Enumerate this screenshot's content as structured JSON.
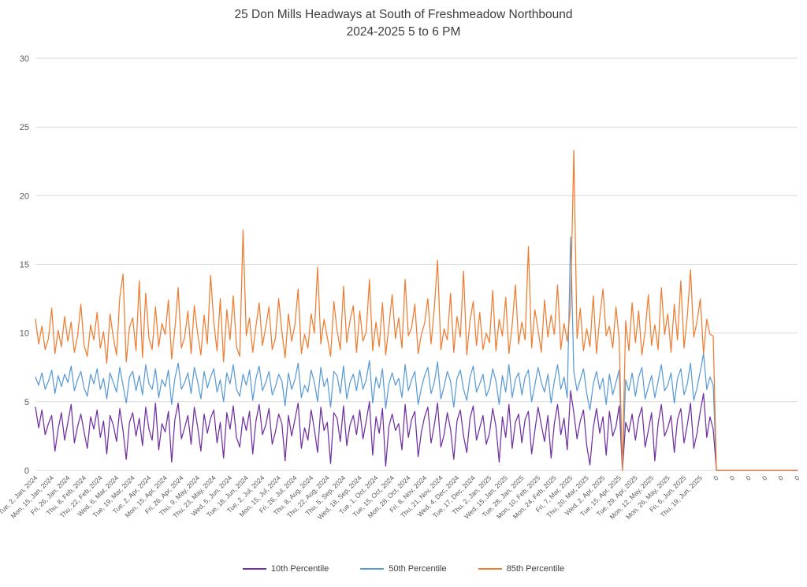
{
  "chart_data": {
    "type": "line",
    "title": "25 Don Mills Headways at South of Freshmeadow Northbound",
    "subtitle": "2024-2025 5 to 6 PM",
    "ylim": [
      0,
      30
    ],
    "y_ticks": [
      0,
      5,
      10,
      15,
      20,
      25,
      30
    ],
    "grid": true,
    "legend_position": "bottom",
    "points_per_tick": 5,
    "x_tick_labels": [
      "Tue, 2, Jan, 2024",
      "Mon, 15, Jan, 2024",
      "Fri, 26, Jan, 2024",
      "Thu, 8, Feb, 2024",
      "Thu, 22, Feb, 2024",
      "Wed, 6, Mar, 2024",
      "Tue, 19, Mar, 2024",
      "Tue, 2, Apr, 2024",
      "Mon, 15, Apr, 2024",
      "Fri, 26, Apr, 2024",
      "Thu, 9, May, 2024",
      "Thu, 23, May, 2024",
      "Wed, 5, Jun, 2024",
      "Tue, 18, Jun, 2024",
      "Tue, 2, Jul, 2024",
      "Mon, 15, Jul, 2024",
      "Fri, 26, Jul, 2024",
      "Thu, 8, Aug, 2024",
      "Thu, 22, Aug, 2024",
      "Thu, 5, Sep, 2024",
      "Wed, 18, Sep, 2024",
      "Tue, 1, Oct, 2024",
      "Tue, 15, Oct, 2024",
      "Mon, 28, Oct, 2024",
      "Fri, 8, Nov, 2024",
      "Thu, 21, Nov, 2024",
      "Wed, 4, Dec, 2024",
      "Tue, 17, Dec, 2024",
      "Thu, 2, Jan, 2025",
      "Wed, 15, Jan, 2025",
      "Tue, 28, Jan, 2025",
      "Mon, 10, Feb, 2025",
      "Mon, 24, Feb, 2025",
      "Fri, 7, Mar, 2025",
      "Thu, 20, Mar, 2025",
      "Wed, 2, Apr, 2025",
      "Tue, 15, Apr, 2025",
      "Tue, 29, Apr, 2025",
      "Mon, 12, May, 2025",
      "Mon, 26, May, 2025",
      "Fri, 6, Jun, 2025",
      "Thu, 19, Jun, 2025",
      "0",
      "0",
      "0",
      "0",
      "0",
      "0"
    ],
    "series": [
      {
        "name": "10th Percentile",
        "color": "#7030A0",
        "values": [
          4.6,
          3.1,
          4.4,
          2.6,
          3.4,
          4.0,
          1.4,
          3.0,
          4.2,
          2.2,
          3.5,
          4.8,
          2.0,
          3.2,
          4.1,
          2.8,
          1.6,
          3.9,
          3.0,
          4.4,
          2.4,
          3.6,
          1.2,
          4.0,
          3.3,
          2.1,
          4.5,
          2.9,
          0.8,
          3.5,
          4.2,
          2.5,
          3.8,
          1.8,
          4.6,
          3.0,
          2.2,
          4.9,
          1.5,
          3.4,
          2.8,
          4.3,
          0.6,
          3.7,
          4.9,
          2.3,
          3.1,
          4.0,
          1.9,
          4.6,
          3.2,
          1.4,
          4.1,
          2.7,
          3.8,
          4.4,
          2.0,
          3.5,
          0.9,
          4.2,
          3.0,
          4.7,
          2.4,
          1.7,
          3.9,
          2.9,
          4.3,
          1.2,
          3.6,
          4.8,
          2.6,
          3.3,
          4.5,
          1.9,
          2.8,
          4.1,
          3.4,
          0.7,
          4.0,
          2.5,
          3.7,
          4.9,
          1.6,
          3.1,
          2.2,
          4.4,
          3.0,
          1.3,
          4.6,
          2.9,
          3.5,
          0.5,
          4.2,
          3.8,
          2.1,
          4.7,
          1.8,
          3.3,
          4.0,
          2.6,
          4.4,
          2.3,
          3.6,
          5.0,
          1.1,
          3.9,
          2.7,
          4.5,
          0.3,
          3.2,
          4.1,
          2.9,
          3.4,
          1.5,
          4.8,
          2.4,
          3.7,
          4.3,
          1.0,
          2.8,
          3.9,
          4.6,
          2.0,
          3.3,
          4.9,
          1.7,
          2.6,
          4.2,
          3.0,
          0.8,
          3.6,
          4.4,
          2.5,
          1.3,
          3.8,
          4.7,
          2.2,
          3.1,
          4.0,
          1.9,
          2.7,
          4.5,
          3.2,
          0.6,
          3.9,
          2.4,
          4.8,
          1.6,
          3.5,
          4.1,
          2.0,
          3.7,
          4.3,
          1.2,
          2.9,
          4.6,
          3.3,
          2.1,
          4.0,
          0.9,
          3.4,
          4.8,
          2.6,
          3.8,
          1.5,
          5.8,
          4.2,
          2.3,
          3.6,
          4.4,
          1.8,
          0.4,
          3.1,
          4.5,
          2.7,
          3.9,
          1.1,
          4.3,
          2.5,
          3.2,
          4.7,
          0.0,
          3.5,
          2.8,
          4.1,
          2.2,
          3.8,
          4.6,
          1.7,
          2.9,
          4.2,
          0.7,
          3.4,
          4.8,
          2.5,
          3.1,
          4.0,
          1.3,
          3.7,
          4.5,
          2.0,
          3.3,
          4.9,
          1.6,
          2.7,
          4.3,
          5.6,
          2.4,
          3.9,
          3.0,
          0,
          0,
          0,
          0,
          0,
          0,
          0,
          0,
          0,
          0,
          0,
          0,
          0,
          0,
          0,
          0,
          0,
          0,
          0,
          0,
          0,
          0,
          0,
          0,
          0,
          0
        ]
      },
      {
        "name": "50th Percentile",
        "color": "#5B9BD5",
        "values": [
          6.8,
          6.2,
          7.1,
          5.9,
          6.5,
          7.3,
          5.6,
          6.9,
          6.1,
          7.0,
          6.4,
          7.6,
          5.8,
          6.6,
          7.2,
          6.0,
          5.4,
          7.0,
          6.3,
          7.4,
          5.9,
          6.7,
          5.2,
          7.1,
          6.4,
          5.7,
          7.5,
          6.2,
          4.9,
          6.8,
          7.2,
          5.8,
          6.9,
          5.5,
          7.7,
          6.3,
          5.9,
          7.4,
          5.3,
          6.6,
          6.1,
          7.3,
          4.8,
          6.7,
          7.8,
          5.9,
          6.4,
          7.1,
          5.6,
          7.5,
          6.5,
          5.2,
          7.2,
          6.0,
          6.8,
          7.4,
          5.7,
          6.6,
          5.0,
          7.1,
          6.3,
          7.7,
          5.9,
          5.4,
          7.0,
          6.2,
          7.3,
          5.1,
          6.7,
          7.6,
          5.8,
          6.4,
          7.2,
          5.5,
          6.1,
          7.0,
          6.5,
          4.7,
          7.1,
          5.9,
          6.6,
          7.8,
          5.3,
          6.2,
          5.7,
          7.3,
          6.4,
          5.0,
          7.5,
          6.1,
          6.7,
          4.6,
          7.2,
          6.9,
          5.6,
          7.6,
          5.2,
          6.4,
          7.0,
          5.8,
          7.3,
          5.9,
          6.6,
          8.0,
          4.9,
          6.8,
          6.0,
          7.4,
          4.5,
          6.3,
          7.1,
          6.2,
          6.7,
          5.3,
          7.7,
          5.8,
          6.6,
          7.2,
          4.8,
          6.0,
          6.9,
          7.5,
          5.6,
          6.4,
          7.9,
          5.2,
          6.1,
          7.2,
          6.5,
          4.6,
          6.7,
          7.3,
          5.9,
          5.1,
          6.8,
          7.6,
          5.7,
          6.3,
          7.0,
          5.4,
          6.0,
          7.4,
          6.5,
          4.8,
          6.9,
          5.7,
          7.7,
          5.3,
          6.6,
          7.1,
          5.5,
          6.8,
          7.3,
          5.0,
          6.2,
          7.5,
          6.4,
          5.7,
          7.0,
          4.9,
          6.5,
          7.7,
          5.9,
          6.8,
          5.3,
          17.0,
          7.2,
          5.8,
          6.6,
          7.4,
          5.6,
          4.4,
          6.3,
          7.2,
          5.9,
          6.7,
          4.8,
          7.0,
          5.5,
          6.4,
          7.3,
          0.0,
          6.6,
          5.8,
          7.1,
          5.4,
          6.8,
          7.5,
          5.2,
          6.1,
          6.9,
          5.3,
          6.5,
          7.7,
          5.8,
          6.2,
          7.1,
          4.9,
          6.7,
          7.4,
          5.5,
          6.3,
          7.8,
          5.1,
          6.0,
          7.2,
          8.5,
          5.9,
          6.8,
          6.2,
          0,
          0,
          0,
          0,
          0,
          0,
          0,
          0,
          0,
          0,
          0,
          0,
          0,
          0,
          0,
          0,
          0,
          0,
          0,
          0,
          0,
          0,
          0,
          0,
          0,
          0
        ]
      },
      {
        "name": "85th Percentile",
        "color": "#ED7D31",
        "values": [
          11.0,
          9.2,
          10.5,
          8.8,
          9.6,
          11.8,
          8.5,
          10.2,
          9.0,
          11.2,
          9.4,
          10.8,
          8.6,
          9.8,
          12.1,
          9.1,
          8.3,
          10.6,
          9.5,
          11.5,
          8.9,
          10.1,
          7.8,
          11.4,
          9.7,
          8.4,
          12.6,
          14.3,
          7.9,
          10.4,
          11.1,
          8.7,
          13.8,
          8.2,
          12.9,
          9.6,
          8.8,
          11.9,
          9.0,
          10.7,
          9.9,
          12.4,
          8.1,
          10.3,
          13.3,
          8.9,
          9.7,
          11.6,
          8.5,
          12.0,
          10.0,
          8.4,
          11.3,
          9.2,
          14.2,
          10.8,
          8.7,
          12.5,
          7.9,
          11.7,
          9.5,
          12.7,
          9.0,
          8.3,
          17.5,
          9.8,
          11.1,
          8.6,
          10.5,
          12.2,
          9.1,
          10.4,
          11.9,
          8.8,
          9.6,
          12.5,
          10.1,
          8.2,
          11.4,
          9.4,
          10.6,
          13.2,
          8.5,
          9.9,
          8.9,
          11.4,
          10.0,
          14.8,
          9.2,
          11.0,
          9.7,
          8.3,
          12.3,
          10.2,
          8.8,
          13.4,
          9.3,
          10.9,
          12.0,
          8.6,
          11.6,
          9.4,
          10.1,
          13.9,
          8.7,
          10.8,
          9.0,
          12.2,
          8.4,
          10.5,
          12.8,
          9.6,
          11.1,
          8.9,
          13.9,
          9.8,
          10.4,
          12.1,
          8.5,
          9.9,
          10.7,
          12.5,
          9.2,
          11.8,
          15.3,
          8.8,
          10.3,
          9.5,
          12.9,
          8.6,
          11.2,
          9.7,
          14.5,
          8.4,
          10.9,
          12.3,
          9.1,
          11.5,
          8.8,
          10.0,
          9.3,
          13.1,
          8.7,
          11.0,
          9.8,
          12.6,
          8.5,
          10.6,
          13.5,
          9.2,
          10.8,
          9.5,
          16.3,
          8.9,
          11.7,
          10.2,
          8.6,
          12.4,
          9.7,
          11.3,
          9.9,
          13.5,
          8.8,
          10.7,
          9.4,
          12.0,
          23.3,
          9.6,
          11.8,
          8.7,
          10.3,
          9.0,
          12.7,
          8.5,
          11.1,
          13.2,
          9.8,
          10.5,
          8.9,
          11.9,
          9.5,
          0.0,
          10.9,
          8.7,
          12.2,
          9.3,
          11.6,
          8.4,
          10.1,
          12.8,
          9.1,
          10.6,
          8.8,
          13.3,
          9.9,
          11.4,
          8.6,
          12.1,
          9.5,
          13.8,
          8.9,
          11.2,
          14.6,
          9.7,
          10.8,
          12.5,
          8.5,
          11.0,
          9.9,
          9.8,
          0,
          0,
          0,
          0,
          0,
          0,
          0,
          0,
          0,
          0,
          0,
          0,
          0,
          0,
          0,
          0,
          0,
          0,
          0,
          0,
          0,
          0,
          0,
          0,
          0,
          0
        ]
      }
    ]
  }
}
